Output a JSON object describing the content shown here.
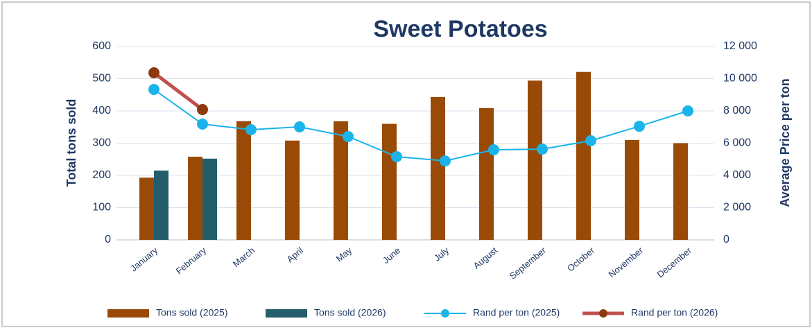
{
  "chart_data": {
    "type": "bar-line",
    "title": "Sweet Potatoes",
    "y_label": "Total tons sold",
    "y2_label": "Average Price per ton",
    "categories": [
      "January",
      "February",
      "March",
      "April",
      "May",
      "June",
      "July",
      "August",
      "September",
      "October",
      "November",
      "December"
    ],
    "series": [
      {
        "name": "Tons sold (2025)",
        "type": "bar",
        "color": "#9a4a07",
        "values": [
          193,
          258,
          368,
          308,
          368,
          360,
          443,
          409,
          494,
          521,
          310,
          300
        ]
      },
      {
        "name": "Tons sold (2026)",
        "type": "bar",
        "color": "#245e6b",
        "values": [
          215,
          252,
          null,
          null,
          null,
          null,
          null,
          null,
          null,
          null,
          null,
          null
        ]
      },
      {
        "name": "Rand per ton (2025)",
        "type": "line",
        "axis": "y2",
        "color": "#1ab4ea",
        "marker_color": "#1ab4ea",
        "values": [
          9333,
          7183,
          6840,
          7010,
          6410,
          5160,
          4900,
          5590,
          5630,
          6150,
          7050,
          8000
        ]
      },
      {
        "name": "Rand per ton (2026)",
        "type": "line",
        "axis": "y2",
        "color": "#c0504d",
        "marker_color": "#8b3a0f",
        "values": [
          10365,
          8086,
          null,
          null,
          null,
          null,
          null,
          null,
          null,
          null,
          null,
          null
        ]
      }
    ],
    "ylim": [
      0,
      600
    ],
    "yticks": [
      0,
      100,
      200,
      300,
      400,
      500,
      600
    ],
    "y2lim": [
      0,
      12000
    ],
    "y2ticks": [
      {
        "value": 0,
        "label": "0"
      },
      {
        "value": 2000,
        "label": "2 000"
      },
      {
        "value": 4000,
        "label": "4 000"
      },
      {
        "value": 6000,
        "label": "6 000"
      },
      {
        "value": 8000,
        "label": "8 000"
      },
      {
        "value": 10000,
        "label": "10 000"
      },
      {
        "value": 12000,
        "label": "12 000"
      }
    ],
    "grid": true,
    "legend": "bottom"
  }
}
